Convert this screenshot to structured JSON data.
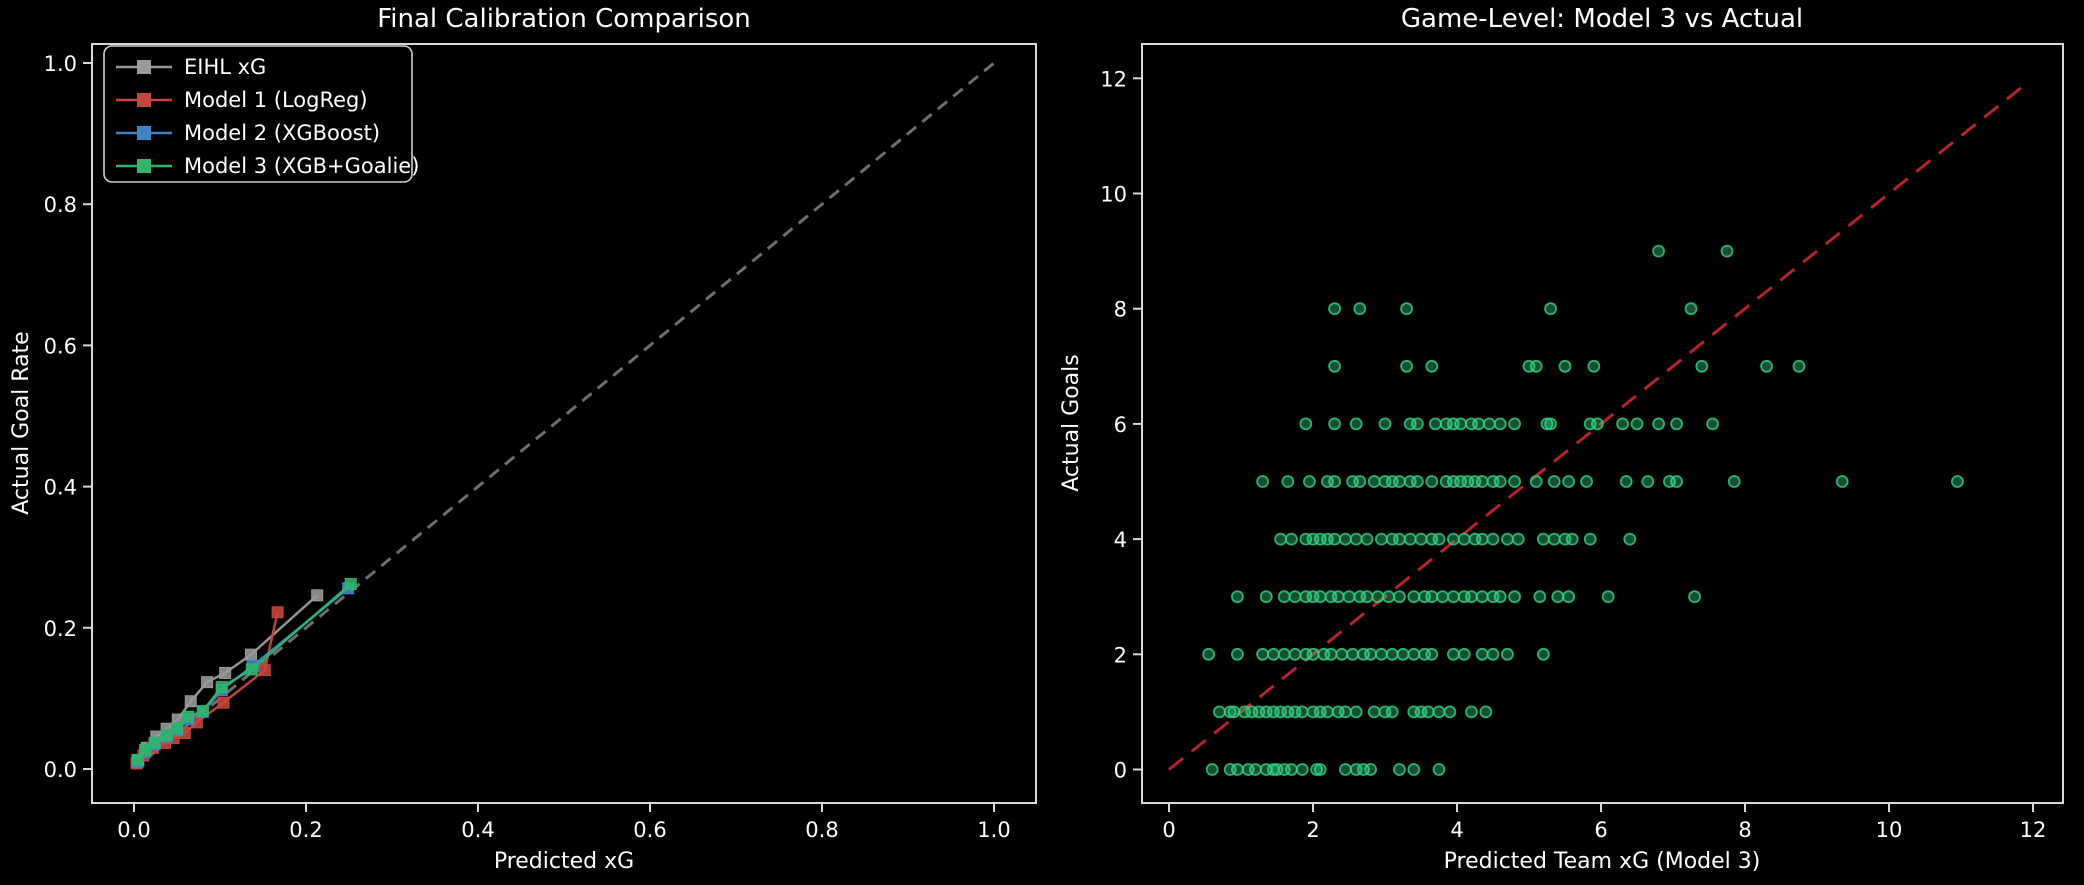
{
  "figure": {
    "background": "#000000",
    "text_color": "#ffffff",
    "spine_color": "#d9d9d9"
  },
  "chart_data": [
    {
      "type": "line",
      "title": "Final Calibration Comparison",
      "xlabel": "Predicted xG",
      "ylabel": "Actual Goal Rate",
      "xlim": [
        -0.05,
        1.05
      ],
      "ylim": [
        -0.05,
        1.03
      ],
      "grid": false,
      "legend_position": "upper left",
      "xticks": {
        "values": [
          0.0,
          0.2,
          0.4,
          0.6,
          0.8,
          1.0
        ],
        "labels": [
          "0.0",
          "0.2",
          "0.4",
          "0.6",
          "0.8",
          "1.0"
        ]
      },
      "yticks": {
        "values": [
          0.0,
          0.2,
          0.4,
          0.6,
          0.8,
          1.0
        ],
        "labels": [
          "0.0",
          "0.2",
          "0.4",
          "0.6",
          "0.8",
          "1.0"
        ]
      },
      "identity_line": {
        "color": "#6e6e6e",
        "dash": "12 8",
        "from": [
          0.0,
          0.0
        ],
        "to": [
          1.0,
          1.0
        ]
      },
      "series": [
        {
          "name": "EIHL xG",
          "color": "#9a9a9a",
          "marker": "square",
          "x": [
            0.005,
            0.015,
            0.026,
            0.038,
            0.051,
            0.066,
            0.085,
            0.106,
            0.136,
            0.213
          ],
          "y": [
            0.012,
            0.03,
            0.046,
            0.057,
            0.07,
            0.096,
            0.123,
            0.136,
            0.162,
            0.246
          ]
        },
        {
          "name": "Model 1 (LogReg)",
          "color": "#c64640",
          "marker": "square",
          "x": [
            0.003,
            0.011,
            0.022,
            0.036,
            0.046,
            0.059,
            0.073,
            0.104,
            0.152,
            0.167
          ],
          "y": [
            0.008,
            0.019,
            0.03,
            0.037,
            0.044,
            0.051,
            0.066,
            0.094,
            0.14,
            0.222
          ]
        },
        {
          "name": "Model 2 (XGBoost)",
          "color": "#4384c7",
          "marker": "square",
          "x": [
            0.004,
            0.013,
            0.024,
            0.038,
            0.05,
            0.063,
            0.08,
            0.102,
            0.138,
            0.249
          ],
          "y": [
            0.01,
            0.024,
            0.035,
            0.046,
            0.055,
            0.071,
            0.081,
            0.112,
            0.146,
            0.256
          ]
        },
        {
          "name": "Model 3 (XGB+Goalie)",
          "color": "#2fb56b",
          "marker": "square",
          "x": [
            0.004,
            0.013,
            0.024,
            0.038,
            0.05,
            0.063,
            0.08,
            0.102,
            0.137,
            0.252
          ],
          "y": [
            0.013,
            0.027,
            0.037,
            0.048,
            0.058,
            0.074,
            0.082,
            0.116,
            0.141,
            0.262
          ]
        }
      ]
    },
    {
      "type": "scatter",
      "title": "Game-Level: Model 3 vs Actual",
      "xlabel": "Predicted Team xG (Model 3)",
      "ylabel": "Actual Goals",
      "xlim": [
        -0.4,
        12.4
      ],
      "ylim": [
        -0.6,
        12.6
      ],
      "grid": false,
      "xticks": {
        "values": [
          0,
          2,
          4,
          6,
          8,
          10,
          12
        ],
        "labels": [
          "0",
          "2",
          "4",
          "6",
          "8",
          "10",
          "12"
        ]
      },
      "yticks": {
        "values": [
          0,
          2,
          4,
          6,
          8,
          10,
          12
        ],
        "labels": [
          "0",
          "2",
          "4",
          "6",
          "8",
          "10",
          "12"
        ]
      },
      "identity_line": {
        "color": "#b5232b",
        "dash": "18 11",
        "from": [
          0.0,
          0.0
        ],
        "to": [
          11.9,
          11.9
        ]
      },
      "marker": {
        "color": "#35d585",
        "fill_alpha": 0.38,
        "edge_alpha": 0.8,
        "radius_px": 5.5
      },
      "points_by_goals": {
        "0": [
          0.6,
          0.85,
          0.95,
          1.1,
          1.2,
          1.35,
          1.45,
          1.5,
          1.6,
          1.7,
          1.85,
          2.05,
          2.1,
          2.45,
          2.6,
          2.7,
          2.8,
          3.2,
          3.4,
          3.75
        ],
        "1": [
          0.7,
          0.85,
          0.9,
          1.05,
          1.15,
          1.25,
          1.35,
          1.45,
          1.55,
          1.65,
          1.75,
          1.85,
          2.0,
          2.1,
          2.2,
          2.35,
          2.45,
          2.6,
          2.85,
          3.0,
          3.1,
          3.4,
          3.5,
          3.6,
          3.75,
          3.9,
          4.2,
          4.4
        ],
        "2": [
          0.55,
          0.95,
          1.3,
          1.45,
          1.6,
          1.75,
          1.9,
          2.0,
          2.15,
          2.25,
          2.4,
          2.55,
          2.7,
          2.8,
          2.95,
          3.1,
          3.25,
          3.4,
          3.55,
          3.65,
          3.95,
          4.1,
          4.35,
          4.5,
          4.7,
          5.2
        ],
        "3": [
          0.95,
          1.35,
          1.6,
          1.75,
          1.9,
          2.0,
          2.1,
          2.25,
          2.35,
          2.5,
          2.65,
          2.75,
          2.9,
          3.05,
          3.2,
          3.4,
          3.55,
          3.65,
          3.8,
          3.95,
          4.1,
          4.2,
          4.35,
          4.5,
          4.6,
          4.8,
          5.15,
          5.4,
          5.55,
          6.1,
          7.3
        ],
        "4": [
          1.55,
          1.7,
          1.9,
          2.0,
          2.1,
          2.2,
          2.3,
          2.45,
          2.6,
          2.75,
          2.95,
          3.1,
          3.2,
          3.35,
          3.5,
          3.65,
          3.75,
          3.95,
          4.1,
          4.25,
          4.35,
          4.5,
          4.7,
          4.85,
          5.2,
          5.35,
          5.5,
          5.6,
          5.85,
          6.4
        ],
        "5": [
          1.3,
          1.65,
          1.95,
          2.2,
          2.3,
          2.55,
          2.65,
          2.85,
          3.0,
          3.1,
          3.2,
          3.35,
          3.45,
          3.65,
          3.85,
          3.95,
          4.05,
          4.15,
          4.25,
          4.35,
          4.5,
          4.6,
          4.8,
          5.1,
          5.35,
          5.55,
          5.8,
          6.35,
          6.65,
          6.95,
          7.05,
          7.85,
          9.35,
          10.95
        ],
        "6": [
          1.9,
          2.3,
          2.6,
          3.0,
          3.35,
          3.45,
          3.7,
          3.85,
          3.95,
          4.05,
          4.2,
          4.3,
          4.45,
          4.6,
          4.8,
          5.25,
          5.3,
          5.85,
          5.95,
          6.3,
          6.5,
          6.8,
          7.05,
          7.55
        ],
        "7": [
          2.3,
          3.3,
          3.65,
          5.0,
          5.1,
          5.5,
          5.9,
          7.4,
          8.3,
          8.75
        ],
        "8": [
          2.3,
          2.65,
          3.3,
          5.3,
          7.25
        ],
        "9": [
          6.8,
          7.75
        ]
      }
    }
  ]
}
